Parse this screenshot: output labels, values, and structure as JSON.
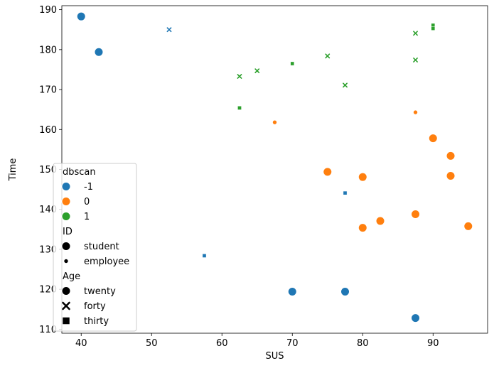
{
  "chart_data": {
    "type": "scatter",
    "xlabel": "SUS",
    "ylabel": "Time",
    "xlim": [
      37.25,
      97.75
    ],
    "ylim": [
      109,
      191
    ],
    "xticks": [
      40,
      50,
      60,
      70,
      80,
      90
    ],
    "yticks": [
      110,
      120,
      130,
      140,
      150,
      160,
      170,
      180,
      190
    ],
    "grid": false,
    "legend": {
      "placement": "lower-left",
      "groups": [
        {
          "title": "dbscan",
          "entries": [
            {
              "label": "-1",
              "color": "#1f77b4",
              "marker": "circle"
            },
            {
              "label": "0",
              "color": "#ff7f0e",
              "marker": "circle"
            },
            {
              "label": "1",
              "color": "#2ca02c",
              "marker": "circle"
            }
          ]
        },
        {
          "title": "ID",
          "entries": [
            {
              "label": "student",
              "color": "#000000",
              "marker": "circle",
              "size": "large"
            },
            {
              "label": "employee",
              "color": "#000000",
              "marker": "circle",
              "size": "small"
            }
          ]
        },
        {
          "title": "Age",
          "entries": [
            {
              "label": "twenty",
              "color": "#000000",
              "marker": "circle"
            },
            {
              "label": "forty",
              "color": "#000000",
              "marker": "x"
            },
            {
              "label": "thirty",
              "color": "#000000",
              "marker": "square"
            }
          ]
        }
      ]
    },
    "colors": {
      "-1": "#1f77b4",
      "0": "#ff7f0e",
      "1": "#2ca02c"
    },
    "points": [
      {
        "x": 40,
        "y": 188.3,
        "dbscan": "-1",
        "id": "student",
        "age": "twenty"
      },
      {
        "x": 42.5,
        "y": 179.4,
        "dbscan": "-1",
        "id": "student",
        "age": "twenty"
      },
      {
        "x": 52.5,
        "y": 185,
        "dbscan": "-1",
        "id": "employee",
        "age": "forty"
      },
      {
        "x": 57.5,
        "y": 128.4,
        "dbscan": "-1",
        "id": "employee",
        "age": "thirty"
      },
      {
        "x": 70,
        "y": 119.4,
        "dbscan": "-1",
        "id": "student",
        "age": "twenty"
      },
      {
        "x": 77.5,
        "y": 119.4,
        "dbscan": "-1",
        "id": "student",
        "age": "twenty"
      },
      {
        "x": 77.5,
        "y": 144.1,
        "dbscan": "-1",
        "id": "employee",
        "age": "thirty"
      },
      {
        "x": 87.5,
        "y": 112.8,
        "dbscan": "-1",
        "id": "student",
        "age": "twenty"
      },
      {
        "x": 67.5,
        "y": 161.8,
        "dbscan": "0",
        "id": "employee",
        "age": "twenty"
      },
      {
        "x": 75,
        "y": 149.4,
        "dbscan": "0",
        "id": "student",
        "age": "twenty"
      },
      {
        "x": 80,
        "y": 148.1,
        "dbscan": "0",
        "id": "student",
        "age": "twenty"
      },
      {
        "x": 80,
        "y": 135.4,
        "dbscan": "0",
        "id": "student",
        "age": "twenty"
      },
      {
        "x": 82.5,
        "y": 137.1,
        "dbscan": "0",
        "id": "student",
        "age": "twenty"
      },
      {
        "x": 87.5,
        "y": 138.8,
        "dbscan": "0",
        "id": "student",
        "age": "twenty"
      },
      {
        "x": 87.5,
        "y": 164.3,
        "dbscan": "0",
        "id": "employee",
        "age": "twenty"
      },
      {
        "x": 90,
        "y": 157.8,
        "dbscan": "0",
        "id": "student",
        "age": "twenty"
      },
      {
        "x": 92.5,
        "y": 153.4,
        "dbscan": "0",
        "id": "student",
        "age": "twenty"
      },
      {
        "x": 92.5,
        "y": 148.4,
        "dbscan": "0",
        "id": "student",
        "age": "twenty"
      },
      {
        "x": 95,
        "y": 135.8,
        "dbscan": "0",
        "id": "student",
        "age": "twenty"
      },
      {
        "x": 62.5,
        "y": 173.3,
        "dbscan": "1",
        "id": "employee",
        "age": "forty"
      },
      {
        "x": 62.5,
        "y": 165.4,
        "dbscan": "1",
        "id": "employee",
        "age": "thirty"
      },
      {
        "x": 65,
        "y": 174.7,
        "dbscan": "1",
        "id": "employee",
        "age": "forty"
      },
      {
        "x": 70,
        "y": 176.5,
        "dbscan": "1",
        "id": "employee",
        "age": "thirty"
      },
      {
        "x": 75,
        "y": 178.4,
        "dbscan": "1",
        "id": "employee",
        "age": "forty"
      },
      {
        "x": 77.5,
        "y": 171.1,
        "dbscan": "1",
        "id": "employee",
        "age": "forty"
      },
      {
        "x": 87.5,
        "y": 184.1,
        "dbscan": "1",
        "id": "employee",
        "age": "forty"
      },
      {
        "x": 87.5,
        "y": 177.4,
        "dbscan": "1",
        "id": "employee",
        "age": "forty"
      },
      {
        "x": 90,
        "y": 186.1,
        "dbscan": "1",
        "id": "employee",
        "age": "thirty"
      },
      {
        "x": 90,
        "y": 185.3,
        "dbscan": "1",
        "id": "employee",
        "age": "thirty"
      }
    ]
  }
}
